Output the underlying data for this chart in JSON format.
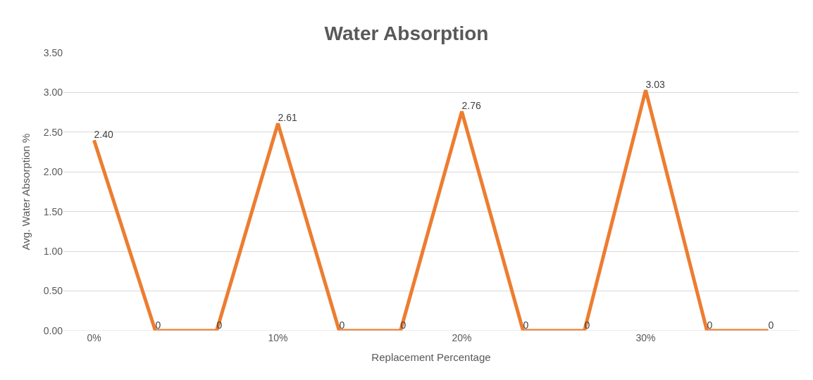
{
  "chart_data": {
    "type": "line",
    "title": "Water Absorption",
    "xlabel": "Replacement Percentage",
    "ylabel": "Avg. Water Absorption %",
    "categories": [
      "0%",
      null,
      null,
      "10%",
      null,
      null,
      "20%",
      null,
      null,
      "30%",
      null,
      null
    ],
    "series": [
      {
        "color": "#ed7d31",
        "values": [
          2.4,
          0,
          0,
          2.61,
          0,
          0,
          2.76,
          0,
          0,
          3.03,
          0,
          0
        ],
        "value_labels": [
          "2.40",
          "0",
          "0",
          "2.61",
          "0",
          "0",
          "2.76",
          "0",
          "0",
          "3.03",
          "0",
          "0"
        ]
      }
    ],
    "ylim": [
      0,
      3.5
    ],
    "yticks": [
      {
        "value": 0,
        "label": "0.00"
      },
      {
        "value": 0.5,
        "label": "0.50"
      },
      {
        "value": 1,
        "label": "1.00"
      },
      {
        "value": 1.5,
        "label": "1.50"
      },
      {
        "value": 2,
        "label": "2.00"
      },
      {
        "value": 2.5,
        "label": "2.50"
      },
      {
        "value": 3,
        "label": "3.00"
      },
      {
        "value": 3.5,
        "label": "3.50"
      }
    ],
    "grid": "y",
    "marker": "none",
    "line_style": "solid"
  }
}
